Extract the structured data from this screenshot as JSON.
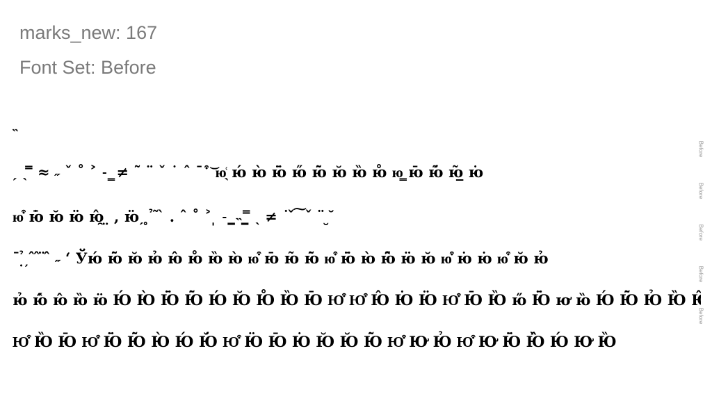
{
  "header": {
    "title": "marks_new: 167",
    "font_set": "Font Set: Before"
  },
  "lines": [
    "˵",
    "ˏ  ˎ  ̿  ≈  ˶  ˇ  ˚  ˃  ˗  ͇  ≠  ˜  ¨  ˇ  ˙  ˆ  ˉ  ͒  ͝   ю̖͑    ю́ ю̀ ю̈̄ ю̋ ю̃̄ ю̆ ю̏ ю̊ ю͇ ю̄ ю̃́ ю̲̃   ю̇",
    "ю͒ ю̄̇ ю̆ ю̈ ю̯̂  ̤  ,  ю̈ˏ   ̥  ̉  ̃  ̀  .  ˆ  ˚  ˃  ̩  ˗  ͇  ˵  ͇  ̿  ˎ  ≠  ˙  ̌  ͠  ˇ  ¨  ̮  ̆",
    "ˉ  ̣̉  ̦  ̂  ̂  ̈  ̂  ˶  ʻ  Ўю́ ю̃̄ ю̆ ю̉ ю̂ ю̊ ю̏ ю̀ ю͒ ю̄ ю̃ ю̃̄ ю͒ ю̈̄ ю̀ ю̂̃ ю̈ ю̆ ю͒ ю̇ ю̇ ю͒ ю̆ ю̉",
    "ю̉ ю̂́ ю̂ ю̏ ю̈ Ю́ Ю̀ Ю̈̄ Ю̃̄ Ю́ Ю̆ Ю̊ Ю̏ Ю̄ Ю͒ Ю͒ Ю̂ Ю̇ Ю̈ Ю͒ Ю̄ Ю̏    ю̋ Ю̈̄ ю̛ ю̏ Ю́ Ю̃̄ Ю̉ Ю̏ Ю̂ Ю̊ Ю̏",
    "Ю͒ Ю̏ Ю̄ Ю͒ Ю̈̄ Ю̃̄ Ю̀ Ю́ Ю̆́ Ю͒ Ю̈ Ю̄ Ю̇ Ю̆ Ю̆ Ю̃̄ Ю͒ Ю̛ Ю̉ Ю͒ Ю̛ Ю̈̄ Ю̂̏ Ю́ Ю̛ Ю̏"
  ],
  "side_tags": [
    "Before",
    "Before",
    "Before",
    "Before",
    "Before"
  ]
}
